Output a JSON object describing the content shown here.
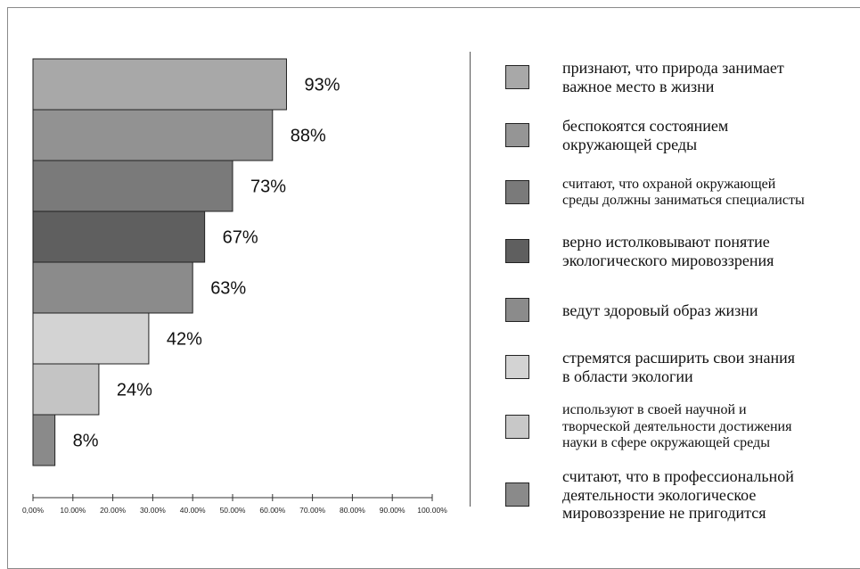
{
  "chart_data": {
    "type": "bar",
    "orientation": "horizontal",
    "values": [
      93,
      88,
      73,
      67,
      63,
      42,
      24,
      8
    ],
    "value_labels": [
      "93%",
      "88%",
      "73%",
      "67%",
      "63%",
      "42%",
      "24%",
      "8%"
    ],
    "fractions": [
      0.635,
      0.6,
      0.5,
      0.43,
      0.4,
      0.29,
      0.165,
      0.055
    ],
    "bar_colors": [
      "#a8a8a8",
      "#929292",
      "#7a7a7a",
      "#5f5f5f",
      "#8b8b8b",
      "#d3d3d3",
      "#c4c4c4",
      "#8a8a8a"
    ],
    "x_ticks": [
      "0,00%",
      "10.00%",
      "20.00%",
      "30.00%",
      "40.00%",
      "50.00%",
      "60.00%",
      "70.00%",
      "80.00%",
      "90.00%",
      "100.00%"
    ],
    "xlim": [
      0,
      1
    ],
    "grid": false,
    "legend_position": "right",
    "legend": [
      {
        "color": "#a8a8a8",
        "lines": [
          "признают, что природа занимает",
          "важное место в жизни"
        ],
        "size": "l"
      },
      {
        "color": "#959595",
        "lines": [
          "беспокоятся состоянием",
          "окружающей среды"
        ],
        "size": "l"
      },
      {
        "color": "#7a7a7a",
        "lines": [
          "считают, что охраной окружающей",
          "среды должны заниматься специалисты"
        ],
        "size": "s"
      },
      {
        "color": "#5f5f5f",
        "lines": [
          "верно истолковывают понятие",
          "экологического мировоззрения"
        ],
        "size": "l"
      },
      {
        "color": "#8b8b8b",
        "lines": [
          "ведут здоровый образ жизни"
        ],
        "size": "l"
      },
      {
        "color": "#d3d3d3",
        "lines": [
          "стремятся расширить свои знания",
          "в области экологии"
        ],
        "size": "l"
      },
      {
        "color": "#c8c8c8",
        "lines": [
          "используют в своей научной и",
          "творческой деятельности достижения",
          "науки в сфере окружающей среды"
        ],
        "size": "s"
      },
      {
        "color": "#8a8a8a",
        "lines": [
          "считают, что в профессиональной",
          "деятельности экологическое",
          "мировоззрение не пригодится"
        ],
        "size": "l"
      }
    ]
  }
}
